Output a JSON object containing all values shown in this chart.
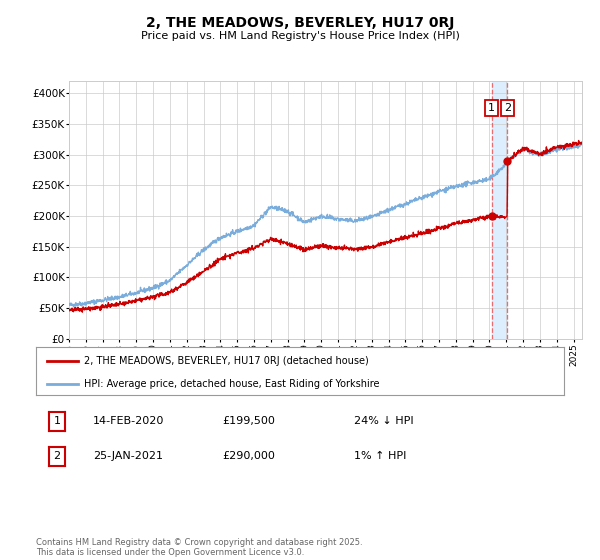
{
  "title": "2, THE MEADOWS, BEVERLEY, HU17 0RJ",
  "subtitle": "Price paid vs. HM Land Registry's House Price Index (HPI)",
  "bg_color": "#ffffff",
  "plot_bg_color": "#ffffff",
  "grid_color": "#cccccc",
  "hpi_color": "#7aaddc",
  "price_color": "#cc0000",
  "highlight_color": "#ddeeff",
  "dashed_color": "#ee5555",
  "transaction1_date": "14-FEB-2020",
  "transaction1_price": 199500,
  "transaction1_hpi": "24% ↓ HPI",
  "transaction2_date": "25-JAN-2021",
  "transaction2_price": 290000,
  "transaction2_hpi": "1% ↑ HPI",
  "legend_label_price": "2, THE MEADOWS, BEVERLEY, HU17 0RJ (detached house)",
  "legend_label_hpi": "HPI: Average price, detached house, East Riding of Yorkshire",
  "footnote": "Contains HM Land Registry data © Crown copyright and database right 2025.\nThis data is licensed under the Open Government Licence v3.0.",
  "ylim_max": 420000,
  "ylim_min": 0,
  "t1_year": 2020.12,
  "t2_year": 2021.07,
  "yticks": [
    0,
    50000,
    100000,
    150000,
    200000,
    250000,
    300000,
    350000,
    400000
  ],
  "ytick_labels": [
    "£0",
    "£50K",
    "£100K",
    "£150K",
    "£200K",
    "£250K",
    "£300K",
    "£350K",
    "£400K"
  ]
}
